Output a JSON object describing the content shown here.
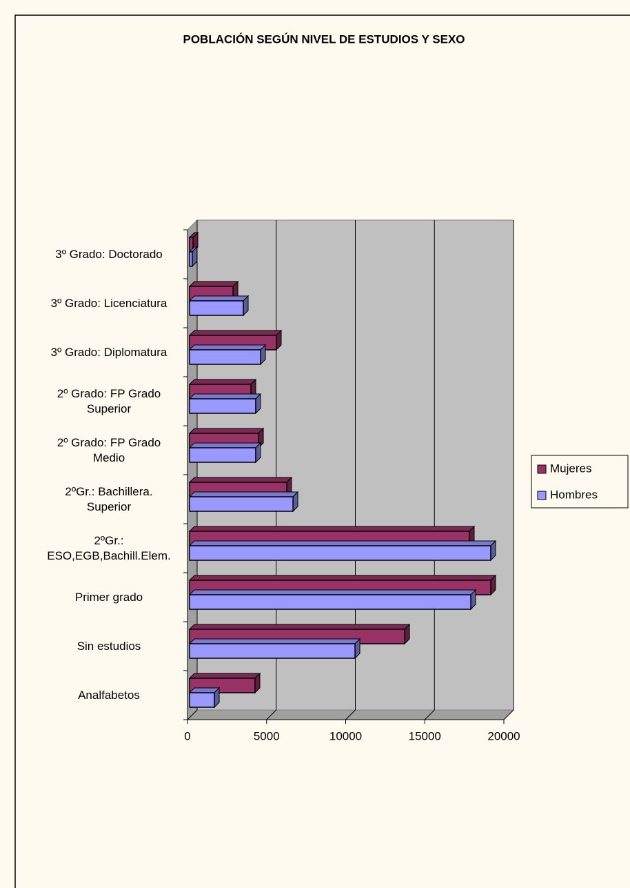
{
  "chart_data": {
    "type": "bar",
    "orientation": "horizontal",
    "3d": true,
    "title": "POBLACIÓN SEGÚN NIVEL DE ESTUDIOS Y SEXO",
    "categories": [
      "Analfabetos",
      "Sin estudios",
      "Primer grado",
      "2ºGr.:\nESO,EGB,Bachill.Elem.",
      "2ºGr.: Bachillera.\nSuperior",
      "2º Grado: FP Grado\nMedio",
      "2º Grado: FP Grado\nSuperior",
      "3º Grado: Diplomatura",
      "3º Grado: Licenciatura",
      "3º Grado: Doctorado"
    ],
    "series": [
      {
        "name": "Mujeres",
        "color": "#993366",
        "values": [
          4270,
          13730,
          19170,
          17820,
          6270,
          4490,
          4010,
          5620,
          2880,
          350
        ]
      },
      {
        "name": "Hombres",
        "color": "#9999ff",
        "values": [
          1700,
          10590,
          17910,
          19170,
          6670,
          4310,
          4310,
          4620,
          3530,
          300
        ]
      }
    ],
    "xlim": [
      0,
      20000
    ],
    "xticks": [
      0,
      5000,
      10000,
      15000,
      20000
    ],
    "grid": true,
    "legend": "right"
  }
}
